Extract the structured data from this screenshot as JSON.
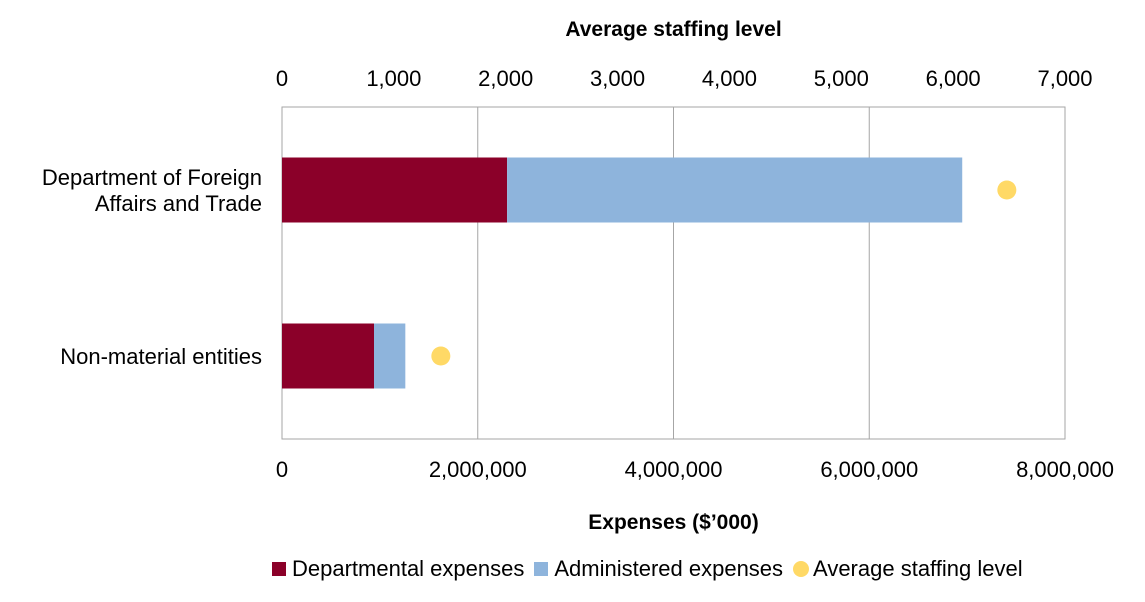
{
  "chart_data": {
    "type": "bar",
    "orientation": "horizontal",
    "stacked": true,
    "categories": [
      "Department of Foreign Affairs and Trade",
      "Non-material entities"
    ],
    "category_lines": [
      [
        "Department of Foreign",
        "Affairs and Trade"
      ],
      [
        "Non-material entities"
      ]
    ],
    "series": [
      {
        "name": "Departmental expenses",
        "values": [
          2300000,
          940000
        ],
        "color": "#8B0029"
      },
      {
        "name": "Administered expenses",
        "values": [
          4650000,
          320000
        ],
        "color": "#8EB4DC"
      }
    ],
    "markers": {
      "name": "Average staffing level",
      "values": [
        6480,
        1420
      ],
      "color": "#FFD966"
    },
    "xlabel": "Expenses ($’000)",
    "x_ticks": [
      "0",
      "2,000,000",
      "4,000,000",
      "6,000,000",
      "8,000,000"
    ],
    "xlim": [
      0,
      8000000
    ],
    "x2label": "Average staffing level",
    "x2_ticks": [
      "0",
      "1,000",
      "2,000",
      "3,000",
      "4,000",
      "5,000",
      "6,000",
      "7,000"
    ],
    "x2lim": [
      0,
      7000
    ],
    "grid": "vertical",
    "legend_position": "bottom"
  }
}
